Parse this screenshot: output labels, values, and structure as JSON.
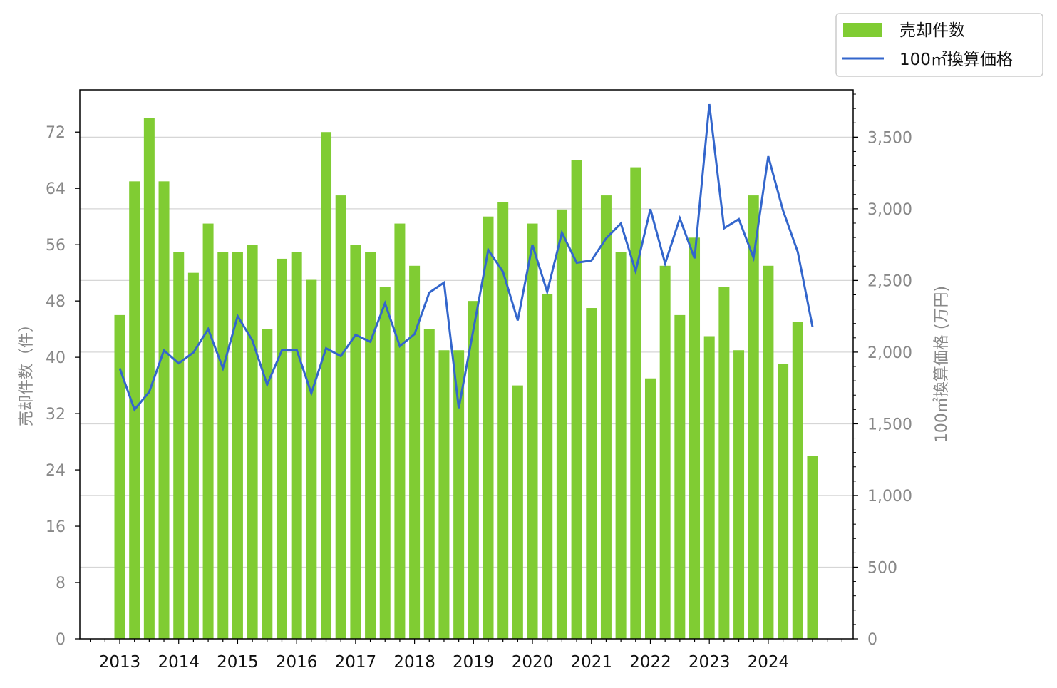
{
  "chart_data": {
    "type": "bar+line",
    "x_start": 2013,
    "periods_per_year": 4,
    "xtick_labels": [
      "2013",
      "2014",
      "2015",
      "2016",
      "2017",
      "2018",
      "2019",
      "2020",
      "2021",
      "2022",
      "2023",
      "2024"
    ],
    "left_axis": {
      "label": "売却件数（件）",
      "ylim": [
        0,
        78
      ],
      "ticks": [
        0,
        8,
        16,
        24,
        32,
        40,
        48,
        56,
        64,
        72
      ],
      "tick_labels": [
        "0",
        "8",
        "16",
        "24",
        "32",
        "40",
        "48",
        "56",
        "64",
        "72"
      ]
    },
    "right_axis": {
      "label": "100㎡換算価格 (万円)",
      "ylim": [
        0,
        3830
      ],
      "ticks": [
        0,
        500,
        1000,
        1500,
        2000,
        2500,
        3000,
        3500
      ],
      "tick_labels": [
        "0",
        "500",
        "1,000",
        "1,500",
        "2,000",
        "2,500",
        "3,000",
        "3,500"
      ]
    },
    "grid": "horizontal (right axis)",
    "legend": {
      "placement": "top-right outside",
      "entries": [
        "売却件数",
        "100㎡換算価格"
      ]
    },
    "series": [
      {
        "name": "売却件数",
        "type": "bar",
        "axis": "left",
        "color": "#80cc33",
        "values": [
          46,
          65,
          74,
          65,
          55,
          52,
          59,
          55,
          55,
          56,
          44,
          54,
          55,
          51,
          72,
          63,
          56,
          55,
          50,
          59,
          53,
          44,
          41,
          41,
          48,
          60,
          62,
          36,
          59,
          49,
          61,
          68,
          47,
          63,
          55,
          67,
          37,
          53,
          46,
          57,
          43,
          50,
          41,
          63,
          53,
          39,
          45,
          26
        ]
      },
      {
        "name": "100㎡換算価格",
        "type": "line",
        "axis": "right",
        "color": "#3366cc",
        "values": [
          1887,
          1599,
          1723,
          2012,
          1922,
          1997,
          2161,
          1887,
          2251,
          2082,
          1773,
          2012,
          2017,
          1713,
          2027,
          1972,
          2121,
          2072,
          2341,
          2042,
          2126,
          2415,
          2485,
          1609,
          2160,
          2714,
          2560,
          2221,
          2749,
          2420,
          2834,
          2624,
          2639,
          2794,
          2898,
          2565,
          2998,
          2619,
          2933,
          2654,
          3730,
          2864,
          2928,
          2659,
          3367,
          2988,
          2699,
          2176
        ]
      }
    ]
  }
}
